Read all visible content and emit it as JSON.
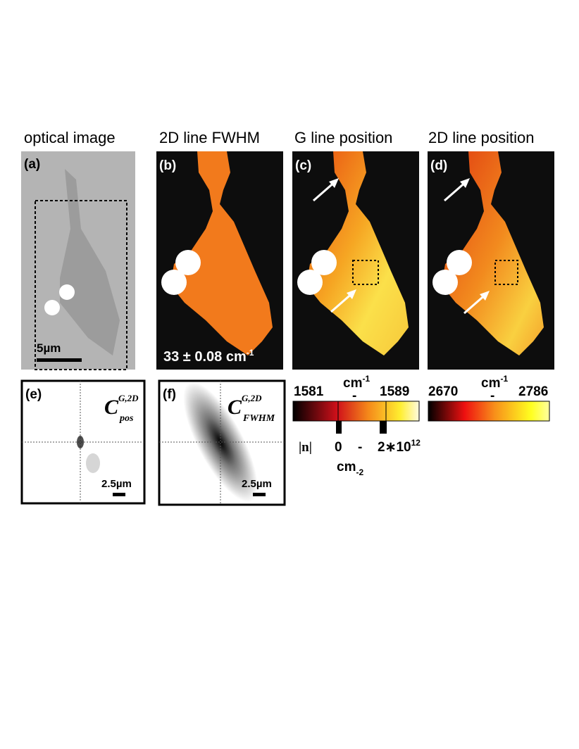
{
  "titles": [
    "optical image",
    "2D line FWHM",
    "G line position",
    "2D line position"
  ],
  "panels": {
    "a": {
      "label": "(a)",
      "scale_bar": "5µm"
    },
    "b": {
      "label": "(b)",
      "annotation": {
        "text": "33 ± 0.08 cm",
        "sup": "-1"
      }
    },
    "c": {
      "label": "(c)"
    },
    "d": {
      "label": "(d)"
    },
    "e": {
      "label": "(e)",
      "symbol": "C",
      "sup": "G,2D",
      "sub": "pos",
      "scale_bar": "2.5µm"
    },
    "f": {
      "label": "(f)",
      "symbol": "C",
      "sup": "G,2D",
      "sub": "FWHM",
      "scale_bar": "2.5µm"
    }
  },
  "colorbars": [
    {
      "min": "1581",
      "unit": "cm",
      "unit_sup": "-1",
      "dash": "-",
      "max": "1589",
      "density": {
        "symbol": "|n|",
        "min": "0",
        "dash": "-",
        "max": "2∗10",
        "max_sup": "12",
        "unit": "cm",
        "unit_sup": "-2"
      }
    },
    {
      "min": "2670",
      "unit": "cm",
      "unit_sup": "-1",
      "dash": "-",
      "max": "2786"
    }
  ]
}
